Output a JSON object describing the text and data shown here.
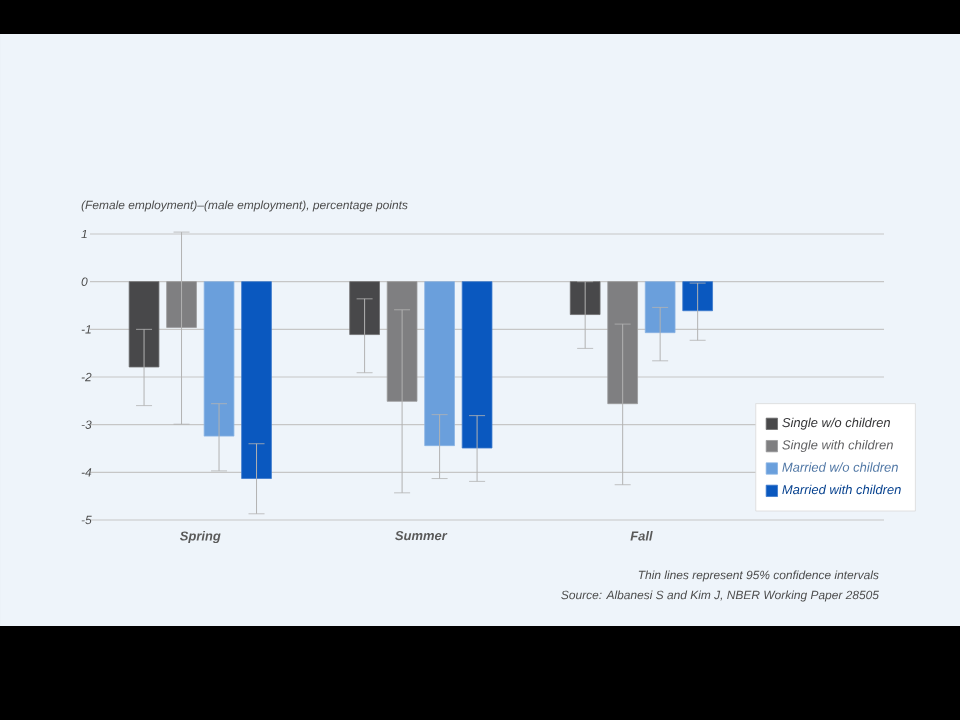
{
  "chart_data": {
    "type": "bar",
    "ylabel": "(Female employment)–(male employment), percentage points",
    "categories": [
      "Spring",
      "Summer",
      "Fall"
    ],
    "series": [
      {
        "name": "Single w/o children",
        "color": "#48484a",
        "values": [
          -1.79,
          -1.11,
          -0.69
        ],
        "errors": [
          [
            -2.6,
            -1.0
          ],
          [
            -1.91,
            -0.36
          ],
          [
            -1.4,
            0.0
          ]
        ]
      },
      {
        "name": "Single with children",
        "color": "#7f7f81",
        "values": [
          -0.96,
          -2.51,
          -2.56
        ],
        "errors": [
          [
            -2.99,
            1.04
          ],
          [
            -4.43,
            -0.59
          ],
          [
            -4.26,
            -0.89
          ]
        ]
      },
      {
        "name": "Married w/o children",
        "color": "#6a9fdc",
        "values": [
          -3.24,
          -3.44,
          -1.07
        ],
        "errors": [
          [
            -3.97,
            -2.56
          ],
          [
            -4.13,
            -2.79
          ],
          [
            -1.66,
            -0.54
          ]
        ]
      },
      {
        "name": "Married with children",
        "color": "#0a58bf",
        "values": [
          -4.13,
          -3.49,
          -0.61
        ],
        "errors": [
          [
            -4.87,
            -3.4
          ],
          [
            -4.19,
            -2.81
          ],
          [
            -1.23,
            -0.03
          ]
        ]
      }
    ],
    "ylim": [
      -5,
      1
    ],
    "yticks": [
      -5,
      -4,
      -3,
      -2,
      -1,
      0,
      1
    ],
    "grid": "y",
    "legend": "bottom right",
    "annotations": [
      "Thin lines represent 95% confidence intervals",
      "Source:  Albanesi S and Kim J, NBER Working Paper 28505"
    ]
  }
}
